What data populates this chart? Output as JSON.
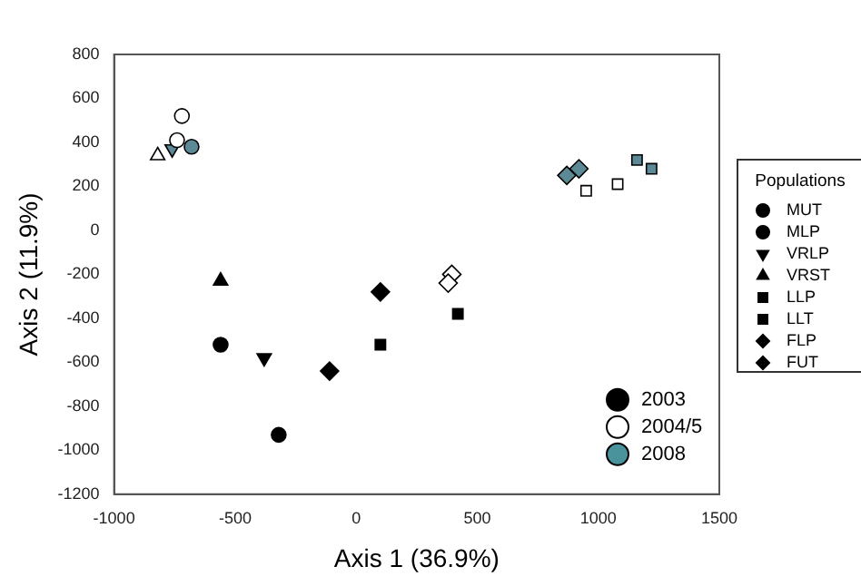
{
  "chart_data": {
    "type": "scatter",
    "xlabel": "Axis 1 (36.9%)",
    "ylabel": "Axis 2 (11.9%)",
    "legend_title": "Populations",
    "legend": "right",
    "xlim": [
      -1000,
      1500
    ],
    "xticks": [
      -1000,
      -500,
      0,
      500,
      1000,
      1500
    ],
    "ylim": [
      -1200,
      800
    ],
    "yticks": [
      -1200,
      -1000,
      -800,
      -600,
      -400,
      -200,
      0,
      200,
      400,
      600,
      800
    ],
    "grid": false,
    "series": [
      {
        "name": "MUT",
        "marker": "circle",
        "color": "#000000",
        "x": [
          -560,
          -720,
          -680
        ],
        "values": [
          -520,
          520,
          380
        ],
        "colors": [
          "#000000",
          "#ffffff",
          "#5b8a96"
        ]
      },
      {
        "name": "MLP",
        "marker": "circle",
        "color": "#000000",
        "x": [
          -320,
          -740
        ],
        "values": [
          -930,
          410
        ],
        "colors": [
          "#000000",
          "#ffffff"
        ]
      },
      {
        "name": "VRLP",
        "marker": "triangle-down",
        "color": "#000000",
        "x": [
          -380,
          -760
        ],
        "values": [
          -580,
          370
        ],
        "colors": [
          "#000000",
          "#5b8a96"
        ]
      },
      {
        "name": "VRST",
        "marker": "triangle",
        "color": "#000000",
        "x": [
          -560,
          -820
        ],
        "values": [
          -230,
          340
        ],
        "colors": [
          "#000000",
          "#ffffff"
        ]
      },
      {
        "name": "LLP",
        "marker": "square",
        "color": "#000000",
        "x": [
          100,
          950,
          1160
        ],
        "values": [
          -520,
          180,
          320
        ],
        "colors": [
          "#000000",
          "#ffffff",
          "#5b8a96"
        ]
      },
      {
        "name": "LLT",
        "marker": "square",
        "color": "#000000",
        "x": [
          420,
          1080,
          1220
        ],
        "values": [
          -380,
          210,
          280
        ],
        "colors": [
          "#000000",
          "#ffffff",
          "#5b8a96"
        ]
      },
      {
        "name": "FLP",
        "marker": "diamond",
        "color": "#000000",
        "x": [
          -110,
          380,
          870
        ],
        "values": [
          -640,
          -240,
          250
        ],
        "colors": [
          "#000000",
          "#ffffff",
          "#5b8a96"
        ]
      },
      {
        "name": "FUT",
        "marker": "diamond",
        "color": "#000000",
        "x": [
          100,
          395,
          920
        ],
        "values": [
          -280,
          -200,
          280
        ],
        "colors": [
          "#000000",
          "#ffffff",
          "#5b8a96"
        ]
      },
      {
        "name": "2003",
        "marker": "circle",
        "color": "#000000"
      },
      {
        "name": "2004/5",
        "marker": "circle",
        "color": "#ffffff"
      },
      {
        "name": "2008",
        "marker": "circle",
        "color": "#4a929c"
      }
    ]
  }
}
